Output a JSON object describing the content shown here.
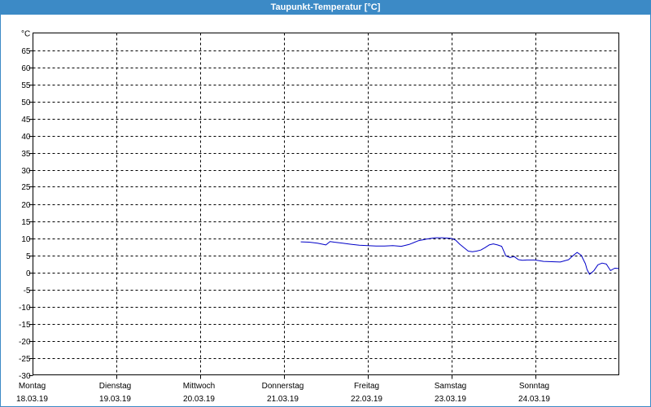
{
  "window": {
    "title": "Taupunkt-Temperatur [°C]"
  },
  "chart_data": {
    "type": "line",
    "title": "Taupunkt-Temperatur [°C]",
    "ylabel": "°C",
    "ylim": [
      -30,
      70
    ],
    "yticks": [
      65,
      60,
      55,
      50,
      45,
      40,
      35,
      30,
      25,
      20,
      15,
      10,
      5,
      0,
      -5,
      -10,
      -15,
      -20,
      -25,
      -30
    ],
    "xlim": [
      0,
      7
    ],
    "grid": true,
    "xticks": [
      {
        "day": "Montag",
        "date": "18.03.19"
      },
      {
        "day": "Dienstag",
        "date": "19.03.19"
      },
      {
        "day": "Mittwoch",
        "date": "20.03.19"
      },
      {
        "day": "Donnerstag",
        "date": "21.03.19"
      },
      {
        "day": "Freitag",
        "date": "22.03.19"
      },
      {
        "day": "Samstag",
        "date": "23.03.19"
      },
      {
        "day": "Sonntag",
        "date": "24.03.19"
      }
    ],
    "series": [
      {
        "color": "#0000c8",
        "x": [
          3.2,
          3.3,
          3.4,
          3.5,
          3.55,
          3.6,
          3.7,
          3.8,
          3.9,
          4.0,
          4.1,
          4.2,
          4.3,
          4.4,
          4.5,
          4.6,
          4.7,
          4.8,
          4.9,
          5.0,
          5.05,
          5.1,
          5.2,
          5.25,
          5.3,
          5.35,
          5.4,
          5.45,
          5.5,
          5.55,
          5.6,
          5.65,
          5.7,
          5.75,
          5.8,
          5.85,
          5.9,
          6.0,
          6.1,
          6.2,
          6.3,
          6.4,
          6.45,
          6.5,
          6.55,
          6.6,
          6.62,
          6.65,
          6.7,
          6.75,
          6.8,
          6.85,
          6.9,
          6.95,
          7.0
        ],
        "y": [
          8.9,
          8.8,
          8.5,
          8.0,
          9.0,
          8.8,
          8.5,
          8.2,
          7.9,
          7.8,
          7.7,
          7.7,
          7.8,
          7.6,
          8.2,
          9.2,
          9.7,
          10.1,
          10.1,
          9.9,
          9.4,
          8.2,
          6.2,
          6.0,
          6.2,
          6.5,
          7.2,
          8.0,
          8.3,
          8.0,
          7.6,
          4.8,
          4.3,
          4.6,
          3.7,
          3.5,
          3.6,
          3.6,
          3.2,
          3.1,
          3.0,
          3.7,
          4.8,
          5.8,
          5.0,
          2.5,
          0.8,
          -0.6,
          0.4,
          2.2,
          2.7,
          2.4,
          0.5,
          1.2,
          1.1
        ]
      }
    ]
  }
}
